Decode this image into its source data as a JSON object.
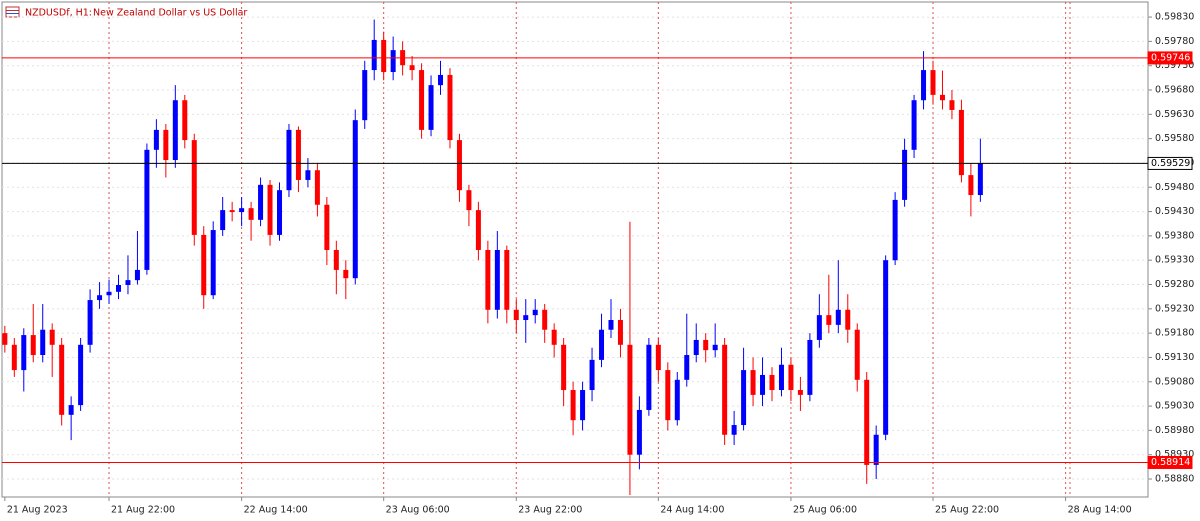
{
  "chart_data": {
    "type": "candlestick",
    "title": "NZDUSDf, H1:",
    "subtitle": "New Zealand Dollar vs US Dollar",
    "up_color": "#0000ff",
    "down_color": "#ff0000",
    "grid": true,
    "xlim": [
      -0.3,
      120.7
    ],
    "xticks": [
      {
        "value": 0,
        "label": "21 Aug 2023"
      },
      {
        "value": 11,
        "label": "21 Aug 22:00"
      },
      {
        "value": 25,
        "label": "22 Aug 14:00"
      },
      {
        "value": 40,
        "label": "23 Aug 06:00"
      },
      {
        "value": 54,
        "label": "23 Aug 22:00"
      },
      {
        "value": 69,
        "label": "24 Aug 14:00"
      },
      {
        "value": 83,
        "label": "25 Aug 06:00"
      },
      {
        "value": 98,
        "label": "25 Aug 22:00"
      },
      {
        "value": 112,
        "label": "28 Aug 14:00"
      }
    ],
    "ylim": [
      0.58843,
      0.59861
    ],
    "yticks": [
      {
        "value": 0.5983,
        "label": "0.59830"
      },
      {
        "value": 0.5978,
        "label": "0.59780"
      },
      {
        "value": 0.5973,
        "label": "0.59730"
      },
      {
        "value": 0.5968,
        "label": "0.59680"
      },
      {
        "value": 0.5963,
        "label": "0.59630"
      },
      {
        "value": 0.5958,
        "label": "0.59580"
      },
      {
        "value": 0.5953,
        "label": "0.59530"
      },
      {
        "value": 0.5948,
        "label": "0.59480"
      },
      {
        "value": 0.5943,
        "label": "0.59430"
      },
      {
        "value": 0.5938,
        "label": "0.59380"
      },
      {
        "value": 0.5933,
        "label": "0.59330"
      },
      {
        "value": 0.5928,
        "label": "0.59280"
      },
      {
        "value": 0.5923,
        "label": "0.59230"
      },
      {
        "value": 0.5918,
        "label": "0.59180"
      },
      {
        "value": 0.5913,
        "label": "0.59130"
      },
      {
        "value": 0.5908,
        "label": "0.59080"
      },
      {
        "value": 0.5903,
        "label": "0.59030"
      },
      {
        "value": 0.5898,
        "label": "0.58980"
      },
      {
        "value": 0.5893,
        "label": "0.58930"
      },
      {
        "value": 0.5888,
        "label": "0.58880"
      }
    ],
    "levels": [
      {
        "value": 0.59746,
        "label": "0.59746",
        "color": "#ff0000"
      },
      {
        "value": 0.58914,
        "label": "0.58914",
        "color": "#ff0000"
      },
      {
        "value": 0.59529,
        "label": "0.59529",
        "color": "#000000"
      }
    ],
    "open": [
      0.5918,
      0.59156,
      0.59104,
      0.59176,
      0.59135,
      0.59187,
      0.59156,
      0.59012,
      0.59032,
      0.59156,
      0.59248,
      0.59258,
      0.59265,
      0.59279,
      0.59289,
      0.5931,
      0.59557,
      0.59598,
      0.59536,
      0.59659,
      0.59577,
      0.59382,
      0.59258,
      0.59392,
      0.59433,
      0.59429,
      0.59437,
      0.59413,
      0.59485,
      0.59382,
      0.59474,
      0.59598,
      0.59495,
      0.59515,
      0.59444,
      0.59351,
      0.5931,
      0.59293,
      0.59618,
      0.59721,
      0.59783,
      0.59717,
      0.59762,
      0.59731,
      0.59721,
      0.59598,
      0.5969,
      0.59711,
      0.59577,
      0.59474,
      0.59433,
      0.59351,
      0.59228,
      0.59351,
      0.59228,
      0.59207,
      0.59217,
      0.59228,
      0.59187,
      0.59156,
      0.59063,
      0.59001,
      0.59063,
      0.59125,
      0.59187,
      0.59207,
      0.59156,
      0.5893,
      0.59022,
      0.59156,
      0.59104,
      0.59001,
      0.59084,
      0.59135,
      0.59166,
      0.59145,
      0.59156,
      0.58971,
      0.58991,
      0.59104,
      0.59053,
      0.59094,
      0.59063,
      0.59115,
      0.59063,
      0.59053,
      0.59166,
      0.59217,
      0.59197,
      0.59228,
      0.59187,
      0.59084,
      0.58909,
      0.58971,
      0.5933,
      0.59454,
      0.59557,
      0.59659,
      0.59721,
      0.5967,
      0.59659,
      0.59639,
      0.59505,
      0.59464
    ],
    "high": [
      0.59195,
      0.5917,
      0.5919,
      0.5924,
      0.5924,
      0.592,
      0.5917,
      0.5905,
      0.5917,
      0.5927,
      0.59285,
      0.5929,
      0.593,
      0.5934,
      0.5939,
      0.5957,
      0.5962,
      0.5961,
      0.5969,
      0.5967,
      0.5959,
      0.594,
      0.5941,
      0.5946,
      0.5945,
      0.5946,
      0.5945,
      0.595,
      0.59495,
      0.5949,
      0.5961,
      0.59605,
      0.5954,
      0.5953,
      0.5946,
      0.5937,
      0.5933,
      0.5964,
      0.5974,
      0.59825,
      0.598,
      0.5979,
      0.5978,
      0.5975,
      0.59735,
      0.5971,
      0.5974,
      0.59725,
      0.5959,
      0.59485,
      0.5945,
      0.5937,
      0.5939,
      0.5936,
      0.5925,
      0.5925,
      0.5925,
      0.5924,
      0.592,
      0.5917,
      0.5908,
      0.5908,
      0.5915,
      0.5922,
      0.5925,
      0.5923,
      0.59409,
      0.5905,
      0.5917,
      0.5917,
      0.5912,
      0.591,
      0.5922,
      0.592,
      0.5918,
      0.592,
      0.5917,
      0.5902,
      0.5915,
      0.5913,
      0.5913,
      0.5911,
      0.5915,
      0.5913,
      0.5909,
      0.5918,
      0.5926,
      0.593,
      0.5933,
      0.5926,
      0.592,
      0.591,
      0.5899,
      0.5934,
      0.5947,
      0.5958,
      0.5967,
      0.5976,
      0.5974,
      0.5972,
      0.5968,
      0.5966,
      0.5953,
      0.5958
    ],
    "low": [
      0.5914,
      0.5909,
      0.5906,
      0.5912,
      0.5912,
      0.5909,
      0.5899,
      0.5896,
      0.5902,
      0.5914,
      0.5923,
      0.5924,
      0.5925,
      0.5926,
      0.5928,
      0.593,
      0.5952,
      0.595,
      0.5952,
      0.5956,
      0.5936,
      0.5923,
      0.5925,
      0.5938,
      0.5941,
      0.594,
      0.5937,
      0.594,
      0.5936,
      0.5937,
      0.5946,
      0.5947,
      0.5948,
      0.5942,
      0.5932,
      0.5926,
      0.5925,
      0.5928,
      0.596,
      0.597,
      0.597,
      0.597,
      0.5971,
      0.597,
      0.5958,
      0.59585,
      0.5967,
      0.5956,
      0.5945,
      0.594,
      0.5933,
      0.592,
      0.5921,
      0.592,
      0.5918,
      0.5916,
      0.592,
      0.5916,
      0.5913,
      0.5903,
      0.5897,
      0.5898,
      0.5904,
      0.5911,
      0.5917,
      0.5913,
      0.58847,
      0.589,
      0.5901,
      0.5908,
      0.5898,
      0.5899,
      0.5907,
      0.5912,
      0.5912,
      0.5913,
      0.5895,
      0.5895,
      0.5898,
      0.5903,
      0.5903,
      0.5904,
      0.5905,
      0.5904,
      0.5902,
      0.5904,
      0.5915,
      0.5918,
      0.5918,
      0.5916,
      0.5906,
      0.5887,
      0.5888,
      0.5896,
      0.5932,
      0.5944,
      0.5954,
      0.5964,
      0.5965,
      0.5964,
      0.5962,
      0.5949,
      0.5942,
      0.5945
    ],
    "close": [
      0.59156,
      0.59104,
      0.59176,
      0.59135,
      0.59187,
      0.59156,
      0.59012,
      0.59032,
      0.59156,
      0.59248,
      0.59258,
      0.59265,
      0.59279,
      0.59289,
      0.5931,
      0.59557,
      0.59598,
      0.59536,
      0.59659,
      0.59577,
      0.59382,
      0.59258,
      0.59392,
      0.59433,
      0.59429,
      0.59437,
      0.59413,
      0.59485,
      0.59382,
      0.59474,
      0.59598,
      0.59495,
      0.59515,
      0.59444,
      0.59351,
      0.5931,
      0.59293,
      0.59618,
      0.59721,
      0.59783,
      0.59717,
      0.59762,
      0.59731,
      0.59721,
      0.59598,
      0.5969,
      0.59711,
      0.59577,
      0.59474,
      0.59433,
      0.59351,
      0.59228,
      0.59351,
      0.59228,
      0.59207,
      0.59217,
      0.59228,
      0.59187,
      0.59156,
      0.59063,
      0.59001,
      0.59063,
      0.59125,
      0.59187,
      0.59207,
      0.59156,
      0.5893,
      0.59022,
      0.59156,
      0.59104,
      0.59001,
      0.59084,
      0.59135,
      0.59166,
      0.59145,
      0.59156,
      0.58971,
      0.58991,
      0.59104,
      0.59053,
      0.59094,
      0.59063,
      0.59115,
      0.59063,
      0.59053,
      0.59166,
      0.59217,
      0.59197,
      0.59228,
      0.59187,
      0.59084,
      0.58909,
      0.58971,
      0.5933,
      0.59454,
      0.59557,
      0.59659,
      0.59721,
      0.5967,
      0.59659,
      0.59639,
      0.59505,
      0.59464,
      0.59529
    ]
  }
}
